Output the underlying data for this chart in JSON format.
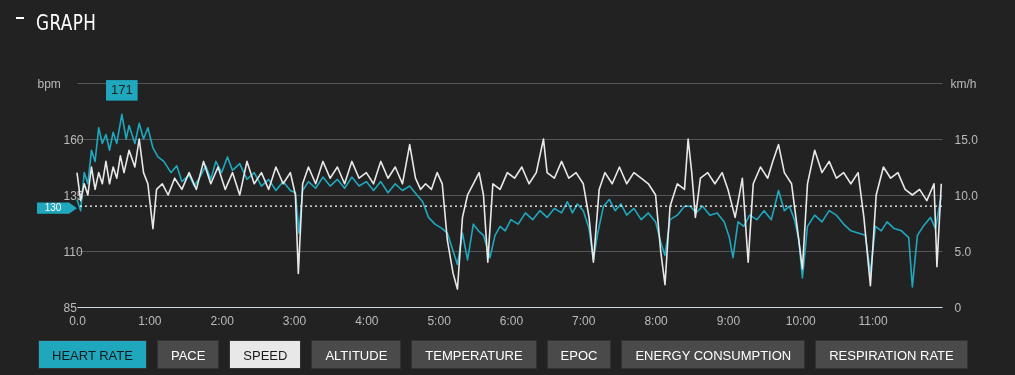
{
  "chart_data": {
    "type": "line",
    "title": "GRAPH",
    "ylabel": "bpm",
    "y2label": "km/h",
    "xlim": [
      0,
      11.96
    ],
    "ylim": [
      85,
      185
    ],
    "y2lim": [
      0,
      20
    ],
    "xticks": [
      {
        "value": 0,
        "label": "0.0"
      },
      {
        "value": 1,
        "label": "1:00"
      },
      {
        "value": 2,
        "label": "2:00"
      },
      {
        "value": 3,
        "label": "3:00"
      },
      {
        "value": 4,
        "label": "4:00"
      },
      {
        "value": 5,
        "label": "5:00"
      },
      {
        "value": 6,
        "label": "6:00"
      },
      {
        "value": 7,
        "label": "7:00"
      },
      {
        "value": 8,
        "label": "8:00"
      },
      {
        "value": 9,
        "label": "9:00"
      },
      {
        "value": 10,
        "label": "10:00"
      },
      {
        "value": 11,
        "label": "11:00"
      }
    ],
    "yticks": [
      85,
      110,
      135,
      160,
      {
        "value": 185,
        "label": null
      }
    ],
    "y2ticks": [
      0,
      {
        "value": 5,
        "label": "5.0"
      },
      {
        "value": 10,
        "label": "10.0"
      },
      {
        "value": 15,
        "label": "15.0"
      },
      {
        "value": 20,
        "label": null
      }
    ],
    "grid": "y",
    "legend": "bottom",
    "ref_lines": [
      {
        "axis": "y",
        "value": 130,
        "label": "130",
        "color": "#ffffff",
        "line_style": "dotted"
      }
    ],
    "annotations": [
      {
        "text": "171",
        "x": 0.62,
        "y": 171
      },
      "PACE",
      "ALTITUDE",
      "TEMPERATURE",
      "EPOC",
      "ENERGY CONSUMPTION",
      "RESPIRATION RATE"
    ],
    "series": [
      {
        "name": "HEART RATE",
        "color": "#1fa8bd",
        "x": [
          0,
          0.05,
          0.1,
          0.15,
          0.2,
          0.25,
          0.3,
          0.35,
          0.4,
          0.45,
          0.5,
          0.55,
          0.62,
          0.68,
          0.72,
          0.8,
          0.86,
          0.92,
          0.98,
          1.05,
          1.12,
          1.2,
          1.3,
          1.38,
          1.45,
          1.55,
          1.62,
          1.7,
          1.78,
          1.85,
          1.92,
          2.0,
          2.08,
          2.15,
          2.25,
          2.35,
          2.45,
          2.55,
          2.65,
          2.75,
          2.85,
          2.95,
          3.02,
          3.07,
          3.12,
          3.2,
          3.3,
          3.4,
          3.5,
          3.6,
          3.7,
          3.8,
          3.9,
          4.0,
          4.1,
          4.2,
          4.3,
          4.4,
          4.5,
          4.6,
          4.7,
          4.78,
          4.86,
          4.95,
          5.05,
          5.12,
          5.2,
          5.26,
          5.33,
          5.4,
          5.48,
          5.55,
          5.62,
          5.71,
          5.78,
          5.85,
          5.92,
          6.0,
          6.1,
          6.2,
          6.3,
          6.4,
          6.5,
          6.6,
          6.7,
          6.78,
          6.85,
          6.92,
          7.0,
          7.08,
          7.14,
          7.2,
          7.28,
          7.36,
          7.44,
          7.52,
          7.6,
          7.7,
          7.8,
          7.9,
          8.0,
          8.07,
          8.13,
          8.2,
          8.3,
          8.4,
          8.48,
          8.56,
          8.65,
          8.75,
          8.85,
          8.95,
          9.02,
          9.07,
          9.14,
          9.22,
          9.3,
          9.4,
          9.5,
          9.6,
          9.7,
          9.78,
          9.85,
          9.92,
          9.98,
          10.03,
          10.1,
          10.2,
          10.3,
          10.4,
          10.5,
          10.6,
          10.7,
          10.8,
          10.9,
          10.97,
          11.04,
          11.12,
          11.2,
          11.3,
          11.4,
          11.5,
          11.55,
          11.62,
          11.7,
          11.8,
          11.87,
          11.95
        ],
        "values": [
          133,
          128,
          145,
          140,
          155,
          150,
          165,
          158,
          162,
          155,
          163,
          158,
          171,
          160,
          166,
          158,
          167,
          160,
          165,
          156,
          152,
          150,
          145,
          148,
          141,
          144,
          139,
          143,
          148,
          142,
          150,
          145,
          152,
          146,
          149,
          142,
          145,
          139,
          142,
          137,
          141,
          137,
          136,
          118,
          137,
          141,
          138,
          143,
          139,
          142,
          138,
          143,
          139,
          141,
          137,
          141,
          136,
          140,
          137,
          139,
          135,
          132,
          125,
          122,
          120,
          118,
          110,
          104,
          118,
          106,
          122,
          119,
          117,
          107,
          117,
          121,
          119,
          124,
          122,
          127,
          124,
          128,
          125,
          129,
          127,
          132,
          127,
          131,
          128,
          120,
          106,
          118,
          130,
          133,
          128,
          131,
          126,
          129,
          124,
          127,
          123,
          114,
          108,
          124,
          126,
          130,
          130,
          127,
          130,
          126,
          127,
          123,
          116,
          107,
          123,
          121,
          126,
          124,
          128,
          124,
          137,
          128,
          130,
          124,
          115,
          98,
          121,
          126,
          123,
          128,
          126,
          122,
          119,
          118,
          117,
          100,
          121,
          119,
          123,
          120,
          119,
          116,
          94,
          117,
          121,
          125,
          120,
          135
        ]
      },
      {
        "name": "SPEED",
        "color": "#e8e8e8",
        "axis": "y2",
        "x": [
          0,
          0.05,
          0.1,
          0.15,
          0.2,
          0.25,
          0.3,
          0.35,
          0.4,
          0.45,
          0.5,
          0.55,
          0.6,
          0.65,
          0.72,
          0.8,
          0.86,
          0.92,
          0.98,
          1.05,
          1.1,
          1.18,
          1.26,
          1.35,
          1.45,
          1.55,
          1.65,
          1.75,
          1.85,
          1.95,
          2.05,
          2.15,
          2.25,
          2.35,
          2.45,
          2.55,
          2.65,
          2.75,
          2.85,
          2.95,
          3.02,
          3.06,
          3.12,
          3.2,
          3.3,
          3.4,
          3.5,
          3.6,
          3.7,
          3.8,
          3.9,
          4.0,
          4.1,
          4.2,
          4.3,
          4.4,
          4.5,
          4.6,
          4.68,
          4.75,
          4.82,
          4.9,
          4.98,
          5.05,
          5.12,
          5.2,
          5.26,
          5.33,
          5.4,
          5.48,
          5.56,
          5.62,
          5.68,
          5.75,
          5.85,
          5.95,
          6.05,
          6.15,
          6.25,
          6.35,
          6.45,
          6.5,
          6.6,
          6.7,
          6.8,
          6.9,
          7.0,
          7.08,
          7.14,
          7.22,
          7.3,
          7.4,
          7.5,
          7.6,
          7.7,
          7.8,
          7.9,
          8.0,
          8.07,
          8.13,
          8.2,
          8.3,
          8.4,
          8.45,
          8.5,
          8.55,
          8.62,
          8.72,
          8.82,
          8.92,
          9.0,
          9.1,
          9.2,
          9.28,
          9.35,
          9.45,
          9.55,
          9.62,
          9.7,
          9.78,
          9.88,
          9.96,
          10.03,
          10.1,
          10.2,
          10.3,
          10.4,
          10.5,
          10.6,
          10.7,
          10.8,
          10.88,
          10.97,
          11.05,
          11.15,
          11.25,
          11.35,
          11.45,
          11.55,
          11.65,
          11.75,
          11.85,
          11.89,
          11.95
        ],
        "values": [
          12,
          9.5,
          11,
          10,
          12.5,
          10.5,
          12,
          11,
          13,
          11,
          12.5,
          11.5,
          13.5,
          12,
          14,
          12.5,
          15,
          12,
          11,
          7,
          10.5,
          11,
          10,
          11.5,
          10.5,
          12,
          10.5,
          13,
          11,
          12.5,
          10.5,
          12,
          10,
          13,
          11,
          12,
          10.5,
          12.5,
          11,
          12,
          10,
          3,
          11,
          12.5,
          11,
          13,
          11.5,
          12.5,
          11,
          13,
          11.5,
          12,
          11,
          13,
          11.5,
          12.5,
          11,
          14.5,
          11.5,
          10.5,
          11,
          10.5,
          12,
          11,
          6,
          3,
          1.6,
          8,
          10,
          11,
          12,
          10,
          4,
          11,
          10.5,
          12,
          11.5,
          12.5,
          11,
          12,
          15,
          12,
          11.5,
          13,
          11.5,
          12,
          11,
          8,
          4,
          10.5,
          12,
          11,
          12.5,
          11,
          12,
          11.5,
          11,
          10,
          5,
          2,
          9,
          11,
          10.5,
          15,
          12,
          8,
          11.5,
          12,
          11,
          12,
          10.5,
          8,
          11.5,
          4,
          11,
          12.5,
          11.5,
          13,
          14.5,
          12,
          11,
          7,
          3.4,
          11,
          14,
          12,
          13,
          11.5,
          12,
          11,
          12,
          8,
          1.9,
          10,
          12.5,
          11.5,
          12,
          10.5,
          10,
          10.5,
          9.5,
          11,
          3.6,
          11
        ]
      }
    ]
  }
}
